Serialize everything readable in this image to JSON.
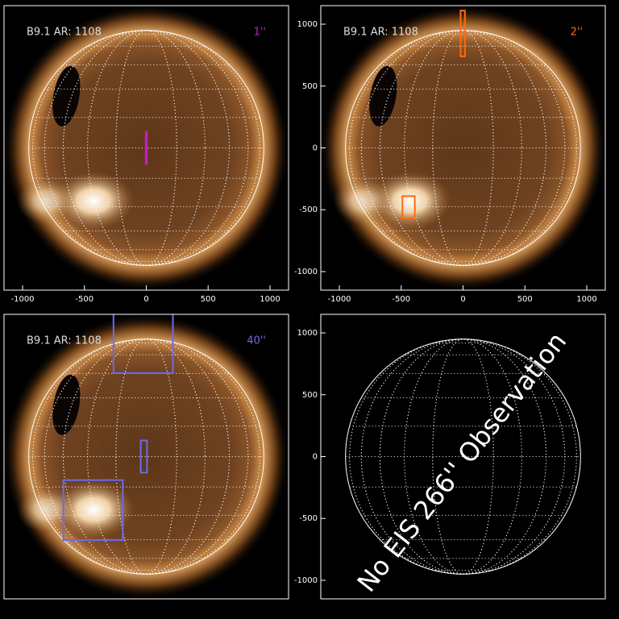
{
  "chart_data": [
    {
      "type": "image",
      "label": "B9.1 AR: 1108",
      "tag": "1''",
      "color": "#c020c0",
      "xlim": [
        -1150,
        1150
      ],
      "ylim": [
        -1150,
        1150
      ],
      "xticks": [
        -1000,
        -500,
        0,
        500,
        1000
      ],
      "boxes": [
        {
          "x": [
            -5,
            5
          ],
          "y": [
            -130,
            130
          ]
        }
      ]
    },
    {
      "type": "image",
      "label": "B9.1 AR: 1108",
      "tag": "2''",
      "color": "#ff6a10",
      "xlim": [
        -1150,
        1150
      ],
      "ylim": [
        -1150,
        1150
      ],
      "xticks": [
        -1000,
        -500,
        0,
        500,
        1000
      ],
      "yticks": [
        -1000,
        -500,
        0,
        500,
        1000
      ],
      "boxes": [
        {
          "x": [
            -20,
            15
          ],
          "y": [
            740,
            1110
          ]
        },
        {
          "x": [
            -490,
            -390
          ],
          "y": [
            -570,
            -390
          ]
        }
      ]
    },
    {
      "type": "image",
      "label": "B9.1 AR: 1108",
      "tag": "40''",
      "color": "#6a6af0",
      "xlim": [
        -1150,
        1150
      ],
      "ylim": [
        -1150,
        1150
      ],
      "boxes": [
        {
          "x": [
            -265,
            215
          ],
          "y": [
            675,
            1170
          ]
        },
        {
          "x": [
            -45,
            6
          ],
          "y": [
            -130,
            130
          ]
        },
        {
          "x": [
            -670,
            -190
          ],
          "y": [
            -675,
            -190
          ]
        }
      ]
    },
    {
      "type": "grid",
      "annotation": "No EIS 266'' Observation",
      "xlim": [
        -1150,
        1150
      ],
      "ylim": [
        -1150,
        1150
      ],
      "yticks": [
        -1000,
        -500,
        0,
        500,
        1000
      ]
    }
  ]
}
